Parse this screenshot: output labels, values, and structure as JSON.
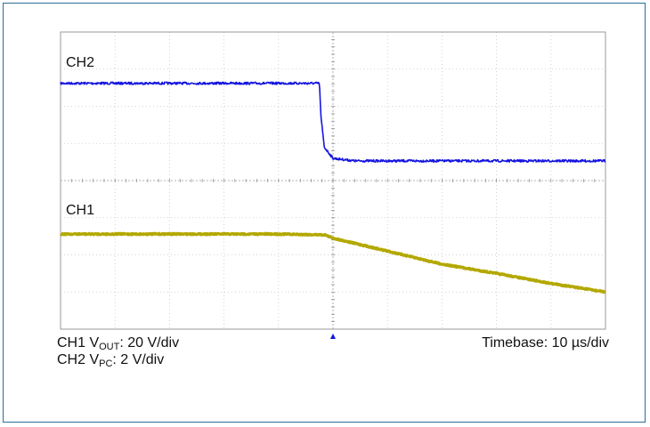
{
  "chart_data": {
    "type": "line",
    "title": "",
    "channel_labels": [
      "CH2",
      "CH1"
    ],
    "grid": true,
    "grid_divisions": {
      "x": 10,
      "y": 8
    },
    "trigger_marker": "▲",
    "x_axis": {
      "unit": "µs",
      "per_div": 10
    },
    "series": [
      {
        "name": "CH2",
        "color": "#1515e0",
        "volts_per_div": 2,
        "points_div": [
          [
            0.0,
            6.62
          ],
          [
            4.75,
            6.62
          ],
          [
            4.78,
            5.7
          ],
          [
            4.84,
            4.9
          ],
          [
            5.0,
            4.6
          ],
          [
            5.4,
            4.53
          ],
          [
            10.0,
            4.53
          ]
        ]
      },
      {
        "name": "CH1",
        "color": "#b3a800",
        "volts_per_div": 20,
        "points_div": [
          [
            0.0,
            2.56
          ],
          [
            4.0,
            2.56
          ],
          [
            4.85,
            2.54
          ],
          [
            5.0,
            2.45
          ],
          [
            6.0,
            2.1
          ],
          [
            7.0,
            1.75
          ],
          [
            8.0,
            1.5
          ],
          [
            9.0,
            1.23
          ],
          [
            10.0,
            1.0
          ]
        ]
      }
    ]
  },
  "legend": {
    "ch1": {
      "prefix": "CH1 V",
      "sub": "OUT",
      "suffix": ": 20 V/div"
    },
    "ch2": {
      "prefix": "CH2 V",
      "sub": "PC",
      "suffix": ": 2 V/div"
    },
    "timebase": "Timebase: 10 µs/div"
  }
}
